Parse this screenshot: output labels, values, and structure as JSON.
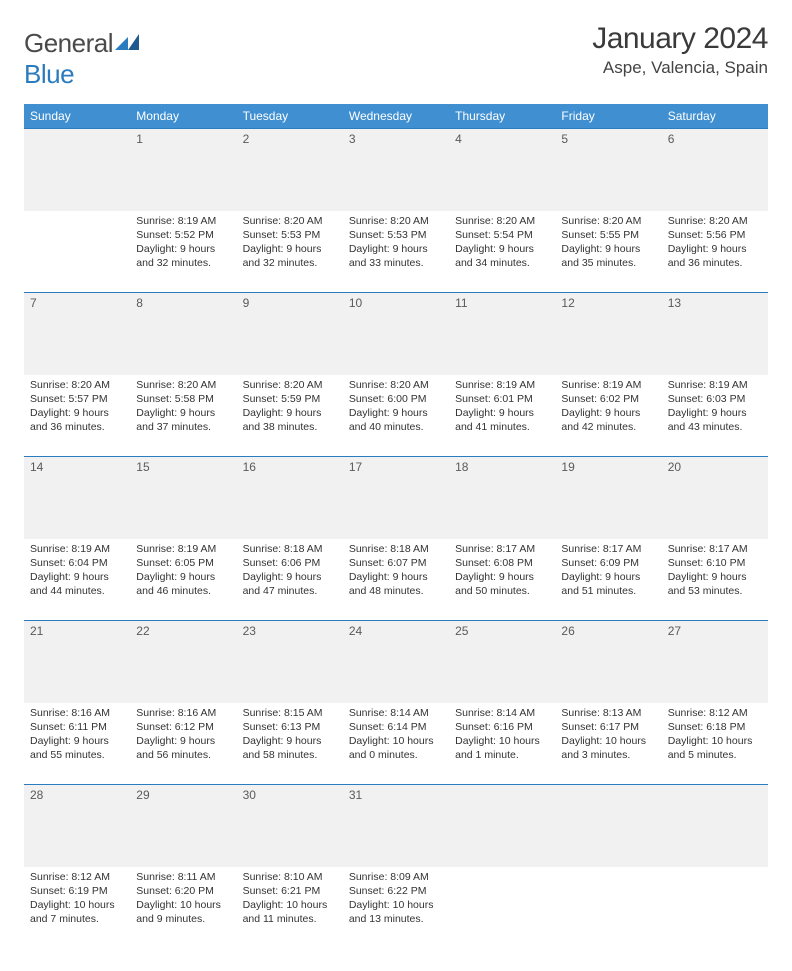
{
  "logo": {
    "word1": "General",
    "word2": "Blue"
  },
  "title": "January 2024",
  "location": "Aspe, Valencia, Spain",
  "header_bg": "#3f8fd1",
  "accent": "#2b7bbf",
  "day_headers": [
    "Sunday",
    "Monday",
    "Tuesday",
    "Wednesday",
    "Thursday",
    "Friday",
    "Saturday"
  ],
  "weeks": [
    {
      "nums": [
        "",
        "1",
        "2",
        "3",
        "4",
        "5",
        "6"
      ],
      "cells": [
        null,
        {
          "sunrise": "8:19 AM",
          "sunset": "5:52 PM",
          "daylight": "9 hours and 32 minutes."
        },
        {
          "sunrise": "8:20 AM",
          "sunset": "5:53 PM",
          "daylight": "9 hours and 32 minutes."
        },
        {
          "sunrise": "8:20 AM",
          "sunset": "5:53 PM",
          "daylight": "9 hours and 33 minutes."
        },
        {
          "sunrise": "8:20 AM",
          "sunset": "5:54 PM",
          "daylight": "9 hours and 34 minutes."
        },
        {
          "sunrise": "8:20 AM",
          "sunset": "5:55 PM",
          "daylight": "9 hours and 35 minutes."
        },
        {
          "sunrise": "8:20 AM",
          "sunset": "5:56 PM",
          "daylight": "9 hours and 36 minutes."
        }
      ]
    },
    {
      "nums": [
        "7",
        "8",
        "9",
        "10",
        "11",
        "12",
        "13"
      ],
      "cells": [
        {
          "sunrise": "8:20 AM",
          "sunset": "5:57 PM",
          "daylight": "9 hours and 36 minutes."
        },
        {
          "sunrise": "8:20 AM",
          "sunset": "5:58 PM",
          "daylight": "9 hours and 37 minutes."
        },
        {
          "sunrise": "8:20 AM",
          "sunset": "5:59 PM",
          "daylight": "9 hours and 38 minutes."
        },
        {
          "sunrise": "8:20 AM",
          "sunset": "6:00 PM",
          "daylight": "9 hours and 40 minutes."
        },
        {
          "sunrise": "8:19 AM",
          "sunset": "6:01 PM",
          "daylight": "9 hours and 41 minutes."
        },
        {
          "sunrise": "8:19 AM",
          "sunset": "6:02 PM",
          "daylight": "9 hours and 42 minutes."
        },
        {
          "sunrise": "8:19 AM",
          "sunset": "6:03 PM",
          "daylight": "9 hours and 43 minutes."
        }
      ]
    },
    {
      "nums": [
        "14",
        "15",
        "16",
        "17",
        "18",
        "19",
        "20"
      ],
      "cells": [
        {
          "sunrise": "8:19 AM",
          "sunset": "6:04 PM",
          "daylight": "9 hours and 44 minutes."
        },
        {
          "sunrise": "8:19 AM",
          "sunset": "6:05 PM",
          "daylight": "9 hours and 46 minutes."
        },
        {
          "sunrise": "8:18 AM",
          "sunset": "6:06 PM",
          "daylight": "9 hours and 47 minutes."
        },
        {
          "sunrise": "8:18 AM",
          "sunset": "6:07 PM",
          "daylight": "9 hours and 48 minutes."
        },
        {
          "sunrise": "8:17 AM",
          "sunset": "6:08 PM",
          "daylight": "9 hours and 50 minutes."
        },
        {
          "sunrise": "8:17 AM",
          "sunset": "6:09 PM",
          "daylight": "9 hours and 51 minutes."
        },
        {
          "sunrise": "8:17 AM",
          "sunset": "6:10 PM",
          "daylight": "9 hours and 53 minutes."
        }
      ]
    },
    {
      "nums": [
        "21",
        "22",
        "23",
        "24",
        "25",
        "26",
        "27"
      ],
      "cells": [
        {
          "sunrise": "8:16 AM",
          "sunset": "6:11 PM",
          "daylight": "9 hours and 55 minutes."
        },
        {
          "sunrise": "8:16 AM",
          "sunset": "6:12 PM",
          "daylight": "9 hours and 56 minutes."
        },
        {
          "sunrise": "8:15 AM",
          "sunset": "6:13 PM",
          "daylight": "9 hours and 58 minutes."
        },
        {
          "sunrise": "8:14 AM",
          "sunset": "6:14 PM",
          "daylight": "10 hours and 0 minutes."
        },
        {
          "sunrise": "8:14 AM",
          "sunset": "6:16 PM",
          "daylight": "10 hours and 1 minute."
        },
        {
          "sunrise": "8:13 AM",
          "sunset": "6:17 PM",
          "daylight": "10 hours and 3 minutes."
        },
        {
          "sunrise": "8:12 AM",
          "sunset": "6:18 PM",
          "daylight": "10 hours and 5 minutes."
        }
      ]
    },
    {
      "nums": [
        "28",
        "29",
        "30",
        "31",
        "",
        "",
        ""
      ],
      "cells": [
        {
          "sunrise": "8:12 AM",
          "sunset": "6:19 PM",
          "daylight": "10 hours and 7 minutes."
        },
        {
          "sunrise": "8:11 AM",
          "sunset": "6:20 PM",
          "daylight": "10 hours and 9 minutes."
        },
        {
          "sunrise": "8:10 AM",
          "sunset": "6:21 PM",
          "daylight": "10 hours and 11 minutes."
        },
        {
          "sunrise": "8:09 AM",
          "sunset": "6:22 PM",
          "daylight": "10 hours and 13 minutes."
        },
        null,
        null,
        null
      ]
    }
  ],
  "labels": {
    "sunrise": "Sunrise:",
    "sunset": "Sunset:",
    "daylight": "Daylight:"
  }
}
